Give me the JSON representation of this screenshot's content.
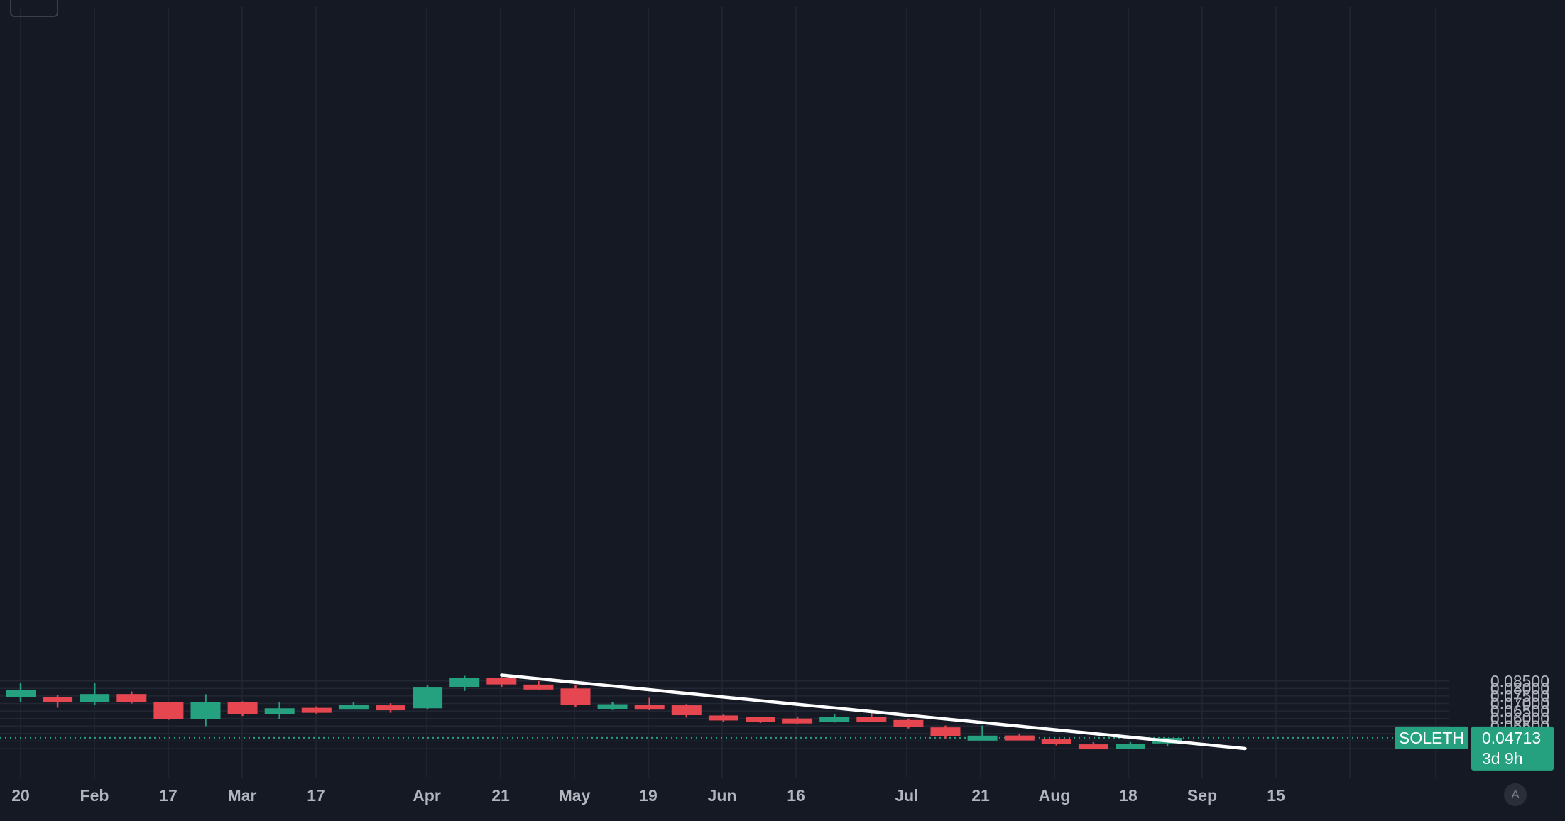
{
  "chart_data": {
    "type": "candlestick",
    "interval": "weekly",
    "ylim": [
      0.0385,
      0.0895
    ],
    "y_ticks": [
      "0.04000",
      "0.04500",
      "0.05000",
      "0.05500",
      "0.06000",
      "0.06500",
      "0.07000",
      "0.07500",
      "0.08000",
      "0.08500"
    ],
    "x_ticks": [
      "20",
      "Feb",
      "17",
      "Mar",
      "17",
      "Apr",
      "21",
      "May",
      "19",
      "Jun",
      "16",
      "Jul",
      "21",
      "Aug",
      "18",
      "Sep",
      "15"
    ],
    "candles": [
      {
        "o": 0.0744,
        "h": 0.0836,
        "l": 0.0708,
        "c": 0.0788
      },
      {
        "o": 0.0744,
        "h": 0.0759,
        "l": 0.0672,
        "c": 0.0708
      },
      {
        "o": 0.0708,
        "h": 0.0838,
        "l": 0.0688,
        "c": 0.0763
      },
      {
        "o": 0.0763,
        "h": 0.078,
        "l": 0.07,
        "c": 0.0708
      },
      {
        "o": 0.0708,
        "h": 0.0708,
        "l": 0.0591,
        "c": 0.0595
      },
      {
        "o": 0.0595,
        "h": 0.0762,
        "l": 0.0549,
        "c": 0.071
      },
      {
        "o": 0.071,
        "h": 0.0714,
        "l": 0.0617,
        "c": 0.0627
      },
      {
        "o": 0.0627,
        "h": 0.0707,
        "l": 0.0597,
        "c": 0.0668
      },
      {
        "o": 0.0671,
        "h": 0.0681,
        "l": 0.0632,
        "c": 0.0665
      },
      {
        "o": 0.0665,
        "h": 0.0712,
        "l": 0.0665,
        "c": 0.0692
      },
      {
        "o": 0.0688,
        "h": 0.0702,
        "l": 0.0638,
        "c": 0.0668
      },
      {
        "o": 0.0668,
        "h": 0.082,
        "l": 0.0659,
        "c": 0.0806
      },
      {
        "o": 0.0807,
        "h": 0.0884,
        "l": 0.0784,
        "c": 0.0869
      },
      {
        "o": 0.0869,
        "h": 0.0887,
        "l": 0.0808,
        "c": 0.0827
      },
      {
        "o": 0.0826,
        "h": 0.085,
        "l": 0.0789,
        "c": 0.0796
      },
      {
        "o": 0.08,
        "h": 0.0823,
        "l": 0.0677,
        "c": 0.069
      },
      {
        "o": 0.069,
        "h": 0.0711,
        "l": 0.0657,
        "c": 0.0695
      },
      {
        "o": 0.0692,
        "h": 0.0738,
        "l": 0.0655,
        "c": 0.0689
      },
      {
        "o": 0.0688,
        "h": 0.0696,
        "l": 0.0606,
        "c": 0.0622
      },
      {
        "o": 0.062,
        "h": 0.0626,
        "l": 0.0575,
        "c": 0.0608
      },
      {
        "o": 0.0608,
        "h": 0.0608,
        "l": 0.057,
        "c": 0.06
      },
      {
        "o": 0.06,
        "h": 0.0613,
        "l": 0.0562,
        "c": 0.0592
      },
      {
        "o": 0.0593,
        "h": 0.0627,
        "l": 0.0573,
        "c": 0.0612
      },
      {
        "o": 0.0612,
        "h": 0.0645,
        "l": 0.0584,
        "c": 0.0591
      },
      {
        "o": 0.059,
        "h": 0.06,
        "l": 0.0534,
        "c": 0.0542
      },
      {
        "o": 0.0541,
        "h": 0.0553,
        "l": 0.0467,
        "c": 0.0482
      },
      {
        "o": 0.0482,
        "h": 0.0553,
        "l": 0.0467,
        "c": 0.0486
      },
      {
        "o": 0.0487,
        "h": 0.05,
        "l": 0.0459,
        "c": 0.0462
      },
      {
        "o": 0.0463,
        "h": 0.0466,
        "l": 0.0421,
        "c": 0.043
      },
      {
        "o": 0.0428,
        "h": 0.0442,
        "l": 0.0402,
        "c": 0.0427
      },
      {
        "o": 0.0426,
        "h": 0.0443,
        "l": 0.0407,
        "c": 0.0432
      },
      {
        "o": 0.0434,
        "h": 0.0471,
        "l": 0.0414,
        "c": 0.0471
      }
    ],
    "trendline": {
      "from_candle": 13,
      "from_price": 0.0889,
      "to_candle": 33.1,
      "to_price": 0.04
    },
    "last_price": {
      "symbol": "SOLETH",
      "price": "0.04713",
      "countdown": "3d 9h",
      "value": 0.04713
    },
    "grid": true
  },
  "colors": {
    "background": "#151924",
    "up": "#26a17f",
    "down": "#e5464f",
    "grid": "#232733",
    "trendline": "#ffffff",
    "axis_text": "#b2b5be",
    "price_line": "#26a17f"
  },
  "corner_button": {
    "label": "A"
  }
}
